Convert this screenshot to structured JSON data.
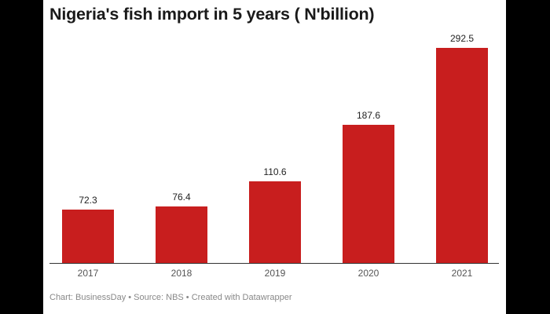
{
  "chart_data": {
    "type": "bar",
    "title": "Nigeria's fish import in 5 years ( N'billion)",
    "categories": [
      "2017",
      "2018",
      "2019",
      "2020",
      "2021"
    ],
    "values": [
      72.3,
      76.4,
      110.6,
      187.6,
      292.5
    ],
    "value_labels": [
      "72.3",
      "76.4",
      "110.6",
      "187.6",
      "292.5"
    ],
    "xlabel": "",
    "ylabel": "",
    "ylim": [
      0,
      292.5
    ],
    "grid": false,
    "legend": null,
    "bar_color": "#c81e1e",
    "footer": "Chart: BusinessDay • Source: NBS • Created with Datawrapper"
  }
}
